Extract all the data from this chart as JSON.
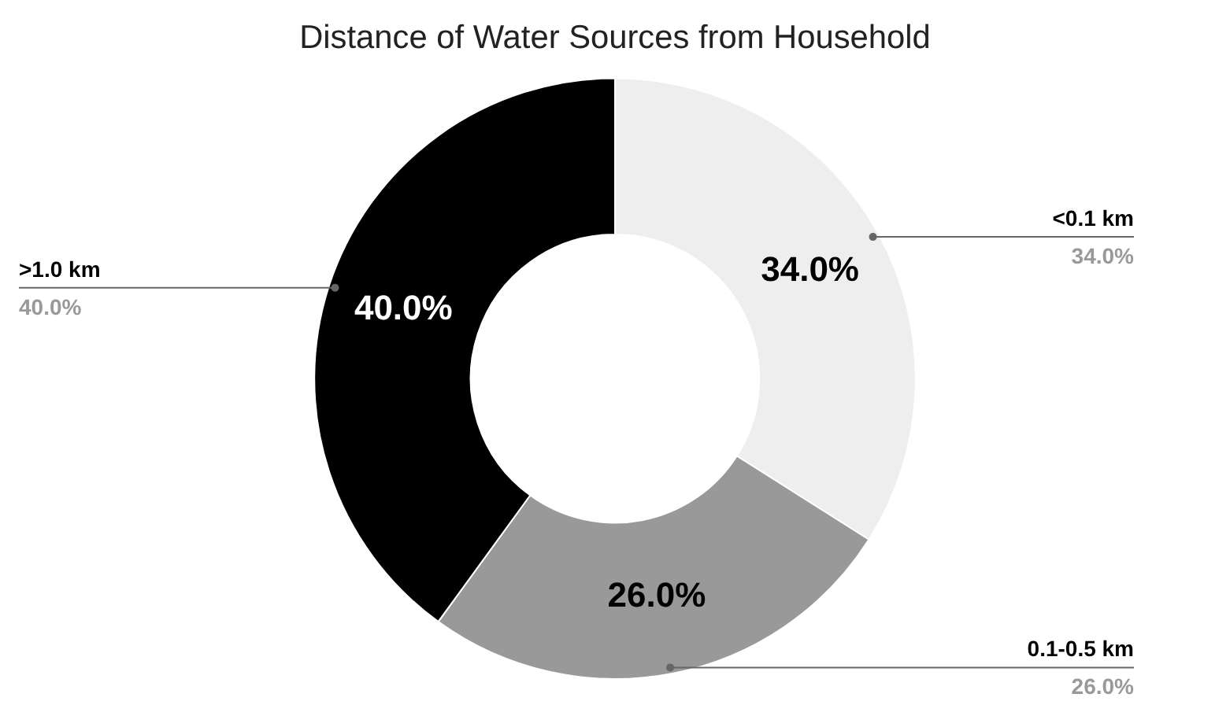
{
  "chart_data": {
    "type": "donut",
    "title": "Distance of Water Sources from Household",
    "categories": [
      "<0.1 km",
      "0.1-0.5 km",
      ">1.0 km"
    ],
    "values": [
      34,
      26,
      40
    ],
    "colors": [
      "#eeeeee",
      "#999999",
      "#000000"
    ],
    "value_labels": [
      "34.0%",
      "26.0%",
      "40.0%"
    ],
    "legend": false
  }
}
